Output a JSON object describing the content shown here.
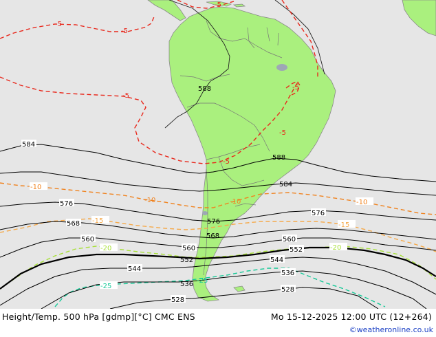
{
  "map": {
    "product": "Height/Temp. 500 hPa [gdmp][°C] CMC ENS",
    "valid_time": "Mo 15-12-2025 12:00 UTC (12+264)",
    "credit": "©weatheronline.co.uk",
    "colors": {
      "land": "#aaf07e",
      "ocean": "#e6e6e6",
      "height_contour": "#000000",
      "temp_minus5": "#e8281c",
      "temp_minus10": "#f0821e",
      "temp_minus15": "#f5a94a",
      "temp_minus20": "#a8e03a",
      "temp_minus25": "#14c896",
      "credit": "#1a3fc4"
    },
    "height_labels": {
      "h588_a": "588",
      "h588_b": "588",
      "h584_a": "584",
      "h584_b": "584",
      "h576_a": "576",
      "h576_b": "576",
      "h576_c": "576",
      "h568_a": "568",
      "h568_b": "568",
      "h560_a": "560",
      "h560_b": "560",
      "h560_c": "560",
      "h552_a": "552",
      "h552_b": "552",
      "h544_a": "544",
      "h544_b": "544",
      "h536_a": "536",
      "h536_b": "536",
      "h528_a": "528",
      "h528_b": "528"
    },
    "temp_labels": {
      "t5_a": "-5",
      "t5_b": "-5",
      "t5_c": "-5",
      "t5_d": "-5",
      "t5_e": "-5",
      "t5_f": "-5",
      "t5_g": "-5",
      "t10_a": "-10",
      "t10_b": "-10",
      "t10_c": "-10",
      "t10_d": "-10",
      "t15_a": "-15",
      "t15_b": "-15",
      "t20_a": "-20",
      "t20_b": "-20",
      "t25_a": "-25",
      "t25_b": "-25"
    }
  }
}
